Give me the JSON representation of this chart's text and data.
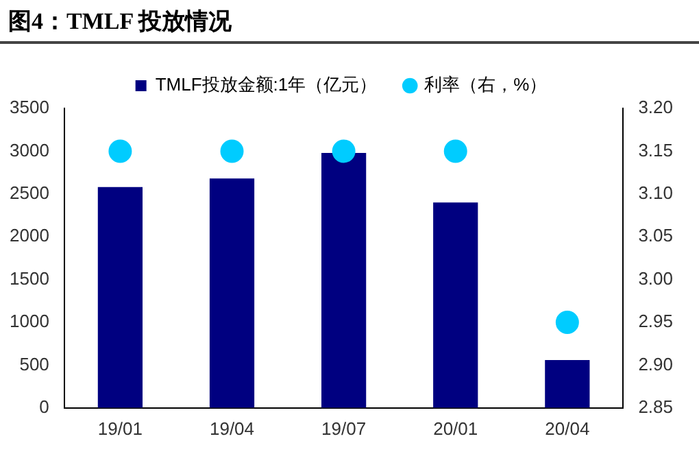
{
  "chart_data": {
    "type": "bar",
    "title": "图4：TMLF 投放情况",
    "categories": [
      "19/01",
      "19/04",
      "19/07",
      "20/01",
      "20/04"
    ],
    "series": [
      {
        "name": "TMLF投放金额:1年（亿元）",
        "color": "#000080",
        "values": [
          2580,
          2680,
          2980,
          2400,
          560
        ]
      },
      {
        "name": "利率（右，%）",
        "type": "scatter",
        "axis": "y2",
        "color": "#00ccff",
        "marker": "circle",
        "values": [
          3.15,
          3.15,
          3.15,
          3.15,
          2.95
        ]
      }
    ],
    "ylim": [
      0,
      3500
    ],
    "yticks": [
      0,
      500,
      1000,
      1500,
      2000,
      2500,
      3000,
      3500
    ],
    "y2lim": [
      2.85,
      3.2
    ],
    "y2ticks": [
      2.85,
      {
        "value": 2.9,
        "label": "2.90"
      },
      2.95,
      {
        "value": 3,
        "label": "3.00"
      },
      3.05,
      {
        "value": 3.1,
        "label": "3.10"
      },
      3.15,
      {
        "value": 3.2,
        "label": "3.20"
      }
    ],
    "legend": "top",
    "grid": false
  }
}
